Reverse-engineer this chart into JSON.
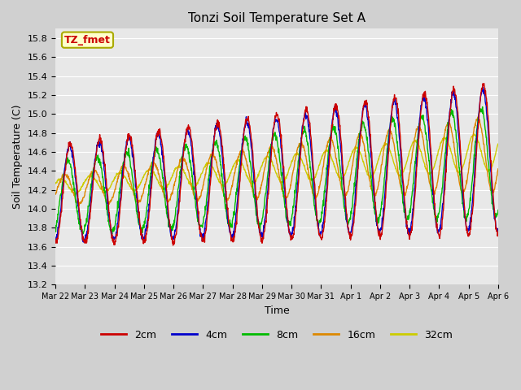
{
  "title": "Tonzi Soil Temperature Set A",
  "xlabel": "Time",
  "ylabel": "Soil Temperature (C)",
  "ylim": [
    13.2,
    15.9
  ],
  "xtick_labels": [
    "Mar 22",
    "Mar 23",
    "Mar 24",
    "Mar 25",
    "Mar 26",
    "Mar 27",
    "Mar 28",
    "Mar 29",
    "Mar 30",
    "Mar 31",
    "Apr 1",
    "Apr 2",
    "Apr 3",
    "Apr 4",
    "Apr 5",
    "Apr 6"
  ],
  "colors": {
    "2cm": "#cc0000",
    "4cm": "#0000cc",
    "8cm": "#00bb00",
    "16cm": "#dd8800",
    "32cm": "#cccc00"
  },
  "annotation_text": "TZ_fmet",
  "annotation_color": "#cc0000",
  "annotation_bg": "#ffffcc",
  "annotation_border": "#aaaa00",
  "fig_facecolor": "#d0d0d0",
  "ax_facecolor": "#e8e8e8",
  "grid_color": "#ffffff",
  "title_fontsize": 11,
  "n_days": 15
}
